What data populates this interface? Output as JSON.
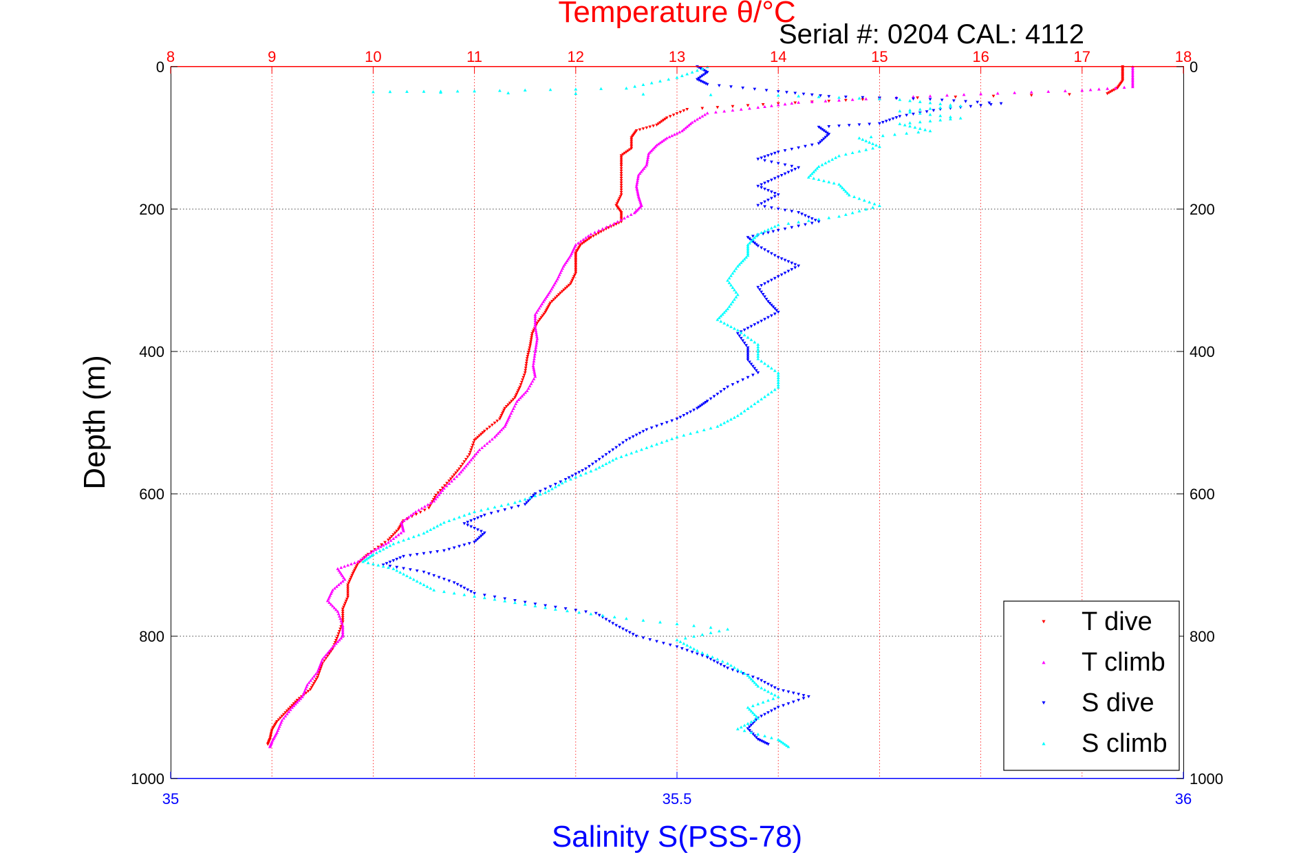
{
  "chart_data": {
    "type": "scatter",
    "title": "Temperature θ/°C",
    "subtitle": "Serial #: 0204  CAL: 4112",
    "ylabel": "Depth (m)",
    "xlabel": "Salinity S(PSS-78)",
    "top_axis": {
      "label": "Temperature θ/°C",
      "range": [
        8,
        18
      ],
      "ticks": [
        8,
        9,
        10,
        11,
        12,
        13,
        14,
        15,
        16,
        17,
        18
      ],
      "tick_labels": [
        "8",
        "9",
        "10",
        "11",
        "12",
        "13",
        "14",
        "15",
        "16",
        "17",
        "18"
      ],
      "color": "#ff0000"
    },
    "bottom_axis": {
      "label": "Salinity S(PSS-78)",
      "range": [
        35,
        36
      ],
      "ticks": [
        35,
        35.5,
        36
      ],
      "tick_labels": [
        "35",
        "35.5",
        "36"
      ],
      "color": "#0000ff"
    },
    "y_axis": {
      "label": "Depth (m)",
      "range": [
        0,
        1000
      ],
      "reversed": true,
      "ticks": [
        0,
        200,
        400,
        600,
        800,
        1000
      ],
      "tick_labels": [
        "0",
        "200",
        "400",
        "600",
        "800",
        "1000"
      ]
    },
    "grid": true,
    "legend_position": "bottom-right",
    "series": [
      {
        "name": "T dive",
        "axis": "temperature",
        "color": "#ff0000",
        "marker": "triangle-down",
        "points": [
          [
            17.4,
            0
          ],
          [
            17.4,
            10
          ],
          [
            17.4,
            20
          ],
          [
            17.35,
            30
          ],
          [
            17.25,
            38
          ],
          [
            15.0,
            45
          ],
          [
            14.0,
            52
          ],
          [
            13.1,
            60
          ],
          [
            12.9,
            72
          ],
          [
            12.8,
            82
          ],
          [
            12.6,
            90
          ],
          [
            12.55,
            100
          ],
          [
            12.55,
            115
          ],
          [
            12.45,
            125
          ],
          [
            12.45,
            140
          ],
          [
            12.45,
            160
          ],
          [
            12.45,
            180
          ],
          [
            12.4,
            195
          ],
          [
            12.45,
            205
          ],
          [
            12.45,
            218
          ],
          [
            12.3,
            228
          ],
          [
            12.15,
            240
          ],
          [
            12.05,
            250
          ],
          [
            12.0,
            262
          ],
          [
            12.0,
            275
          ],
          [
            12.0,
            290
          ],
          [
            11.95,
            305
          ],
          [
            11.85,
            318
          ],
          [
            11.75,
            332
          ],
          [
            11.7,
            345
          ],
          [
            11.62,
            360
          ],
          [
            11.57,
            375
          ],
          [
            11.55,
            392
          ],
          [
            11.52,
            410
          ],
          [
            11.5,
            430
          ],
          [
            11.45,
            450
          ],
          [
            11.4,
            465
          ],
          [
            11.3,
            480
          ],
          [
            11.25,
            495
          ],
          [
            11.1,
            512
          ],
          [
            11.0,
            525
          ],
          [
            10.95,
            545
          ],
          [
            10.85,
            565
          ],
          [
            10.75,
            582
          ],
          [
            10.62,
            602
          ],
          [
            10.55,
            620
          ],
          [
            10.3,
            638
          ],
          [
            10.25,
            650
          ],
          [
            10.15,
            665
          ],
          [
            9.95,
            685
          ],
          [
            9.85,
            698
          ],
          [
            9.8,
            712
          ],
          [
            9.75,
            728
          ],
          [
            9.75,
            745
          ],
          [
            9.7,
            762
          ],
          [
            9.7,
            780
          ],
          [
            9.65,
            800
          ],
          [
            9.6,
            818
          ],
          [
            9.5,
            838
          ],
          [
            9.45,
            858
          ],
          [
            9.38,
            875
          ],
          [
            9.25,
            890
          ],
          [
            9.15,
            905
          ],
          [
            9.05,
            920
          ],
          [
            9.0,
            932
          ],
          [
            8.98,
            945
          ],
          [
            8.96,
            952
          ]
        ]
      },
      {
        "name": "T climb",
        "axis": "temperature",
        "color": "#ff00ff",
        "marker": "triangle-up",
        "points": [
          [
            17.5,
            0
          ],
          [
            17.5,
            15
          ],
          [
            17.5,
            28
          ],
          [
            17.0,
            33
          ],
          [
            16.0,
            38
          ],
          [
            15.0,
            44
          ],
          [
            14.2,
            50
          ],
          [
            13.8,
            57
          ],
          [
            13.3,
            65
          ],
          [
            13.15,
            78
          ],
          [
            13.05,
            90
          ],
          [
            12.9,
            100
          ],
          [
            12.8,
            110
          ],
          [
            12.72,
            122
          ],
          [
            12.7,
            138
          ],
          [
            12.62,
            152
          ],
          [
            12.6,
            168
          ],
          [
            12.62,
            182
          ],
          [
            12.65,
            195
          ],
          [
            12.58,
            205
          ],
          [
            12.38,
            220
          ],
          [
            12.15,
            235
          ],
          [
            12.0,
            250
          ],
          [
            11.95,
            265
          ],
          [
            11.88,
            280
          ],
          [
            11.82,
            298
          ],
          [
            11.75,
            315
          ],
          [
            11.68,
            330
          ],
          [
            11.6,
            348
          ],
          [
            11.6,
            365
          ],
          [
            11.62,
            382
          ],
          [
            11.6,
            400
          ],
          [
            11.58,
            420
          ],
          [
            11.6,
            435
          ],
          [
            11.52,
            455
          ],
          [
            11.42,
            470
          ],
          [
            11.35,
            490
          ],
          [
            11.3,
            505
          ],
          [
            11.2,
            520
          ],
          [
            11.05,
            538
          ],
          [
            10.95,
            555
          ],
          [
            10.85,
            572
          ],
          [
            10.7,
            592
          ],
          [
            10.6,
            610
          ],
          [
            10.42,
            625
          ],
          [
            10.28,
            640
          ],
          [
            10.3,
            652
          ],
          [
            10.15,
            668
          ],
          [
            10.0,
            680
          ],
          [
            9.85,
            695
          ],
          [
            9.65,
            705
          ],
          [
            9.72,
            720
          ],
          [
            9.6,
            735
          ],
          [
            9.55,
            750
          ],
          [
            9.65,
            765
          ],
          [
            9.7,
            785
          ],
          [
            9.7,
            800
          ],
          [
            9.6,
            815
          ],
          [
            9.5,
            832
          ],
          [
            9.45,
            850
          ],
          [
            9.35,
            868
          ],
          [
            9.3,
            885
          ],
          [
            9.2,
            900
          ],
          [
            9.1,
            918
          ],
          [
            9.05,
            935
          ],
          [
            9.0,
            948
          ],
          [
            8.98,
            955
          ]
        ]
      },
      {
        "name": "S dive",
        "axis": "salinity",
        "color": "#0000ff",
        "marker": "triangle-down",
        "points": [
          [
            35.52,
            0
          ],
          [
            35.53,
            8
          ],
          [
            35.52,
            18
          ],
          [
            35.53,
            25
          ],
          [
            35.6,
            35
          ],
          [
            35.65,
            42
          ],
          [
            35.75,
            46
          ],
          [
            35.82,
            52
          ],
          [
            35.76,
            60
          ],
          [
            35.72,
            70
          ],
          [
            35.7,
            80
          ],
          [
            35.64,
            85
          ],
          [
            35.65,
            95
          ],
          [
            35.64,
            108
          ],
          [
            35.6,
            120
          ],
          [
            35.58,
            130
          ],
          [
            35.62,
            142
          ],
          [
            35.6,
            155
          ],
          [
            35.58,
            168
          ],
          [
            35.6,
            180
          ],
          [
            35.58,
            195
          ],
          [
            35.62,
            205
          ],
          [
            35.64,
            218
          ],
          [
            35.6,
            230
          ],
          [
            35.57,
            240
          ],
          [
            35.58,
            252
          ],
          [
            35.6,
            268
          ],
          [
            35.62,
            280
          ],
          [
            35.6,
            295
          ],
          [
            35.58,
            310
          ],
          [
            35.59,
            330
          ],
          [
            35.6,
            345
          ],
          [
            35.58,
            360
          ],
          [
            35.56,
            375
          ],
          [
            35.57,
            395
          ],
          [
            35.57,
            412
          ],
          [
            35.58,
            430
          ],
          [
            35.55,
            450
          ],
          [
            35.53,
            470
          ],
          [
            35.52,
            480
          ],
          [
            35.5,
            495
          ],
          [
            35.47,
            510
          ],
          [
            35.45,
            525
          ],
          [
            35.43,
            545
          ],
          [
            35.41,
            565
          ],
          [
            35.39,
            580
          ],
          [
            35.36,
            600
          ],
          [
            35.35,
            615
          ],
          [
            35.31,
            630
          ],
          [
            35.29,
            642
          ],
          [
            35.31,
            655
          ],
          [
            35.3,
            668
          ],
          [
            35.27,
            680
          ],
          [
            35.23,
            688
          ],
          [
            35.21,
            700
          ],
          [
            35.25,
            710
          ],
          [
            35.28,
            725
          ],
          [
            35.3,
            740
          ],
          [
            35.36,
            755
          ],
          [
            35.42,
            768
          ],
          [
            35.44,
            785
          ],
          [
            35.46,
            800
          ],
          [
            35.5,
            815
          ],
          [
            35.53,
            830
          ],
          [
            35.55,
            845
          ],
          [
            35.58,
            860
          ],
          [
            35.6,
            875
          ],
          [
            35.63,
            885
          ],
          [
            35.6,
            900
          ],
          [
            35.58,
            915
          ],
          [
            35.57,
            930
          ],
          [
            35.58,
            945
          ],
          [
            35.59,
            952
          ]
        ]
      },
      {
        "name": "S climb",
        "axis": "salinity",
        "color": "#00ffff",
        "marker": "triangle-up",
        "points": [
          [
            35.53,
            0
          ],
          [
            35.5,
            15
          ],
          [
            35.45,
            30
          ],
          [
            35.3,
            34
          ],
          [
            35.2,
            35
          ],
          [
            35.6,
            40
          ],
          [
            35.72,
            46
          ],
          [
            35.78,
            55
          ],
          [
            35.72,
            62
          ],
          [
            35.78,
            72
          ],
          [
            35.72,
            80
          ],
          [
            35.75,
            90
          ],
          [
            35.68,
            100
          ],
          [
            35.7,
            112
          ],
          [
            35.66,
            125
          ],
          [
            35.64,
            140
          ],
          [
            35.63,
            155
          ],
          [
            35.66,
            165
          ],
          [
            35.67,
            180
          ],
          [
            35.7,
            195
          ],
          [
            35.66,
            210
          ],
          [
            35.6,
            222
          ],
          [
            35.58,
            235
          ],
          [
            35.57,
            250
          ],
          [
            35.57,
            265
          ],
          [
            35.56,
            280
          ],
          [
            35.55,
            300
          ],
          [
            35.56,
            320
          ],
          [
            35.55,
            340
          ],
          [
            35.54,
            355
          ],
          [
            35.56,
            370
          ],
          [
            35.58,
            390
          ],
          [
            35.58,
            410
          ],
          [
            35.6,
            430
          ],
          [
            35.6,
            450
          ],
          [
            35.58,
            470
          ],
          [
            35.56,
            490
          ],
          [
            35.54,
            505
          ],
          [
            35.5,
            520
          ],
          [
            35.47,
            535
          ],
          [
            35.44,
            550
          ],
          [
            35.42,
            565
          ],
          [
            35.39,
            582
          ],
          [
            35.37,
            598
          ],
          [
            35.34,
            612
          ],
          [
            35.3,
            625
          ],
          [
            35.27,
            640
          ],
          [
            35.25,
            655
          ],
          [
            35.22,
            670
          ],
          [
            35.2,
            685
          ],
          [
            35.19,
            695
          ],
          [
            35.22,
            705
          ],
          [
            35.24,
            720
          ],
          [
            35.26,
            735
          ],
          [
            35.32,
            748
          ],
          [
            35.38,
            762
          ],
          [
            35.45,
            775
          ],
          [
            35.55,
            790
          ],
          [
            35.5,
            805
          ],
          [
            35.52,
            820
          ],
          [
            35.55,
            838
          ],
          [
            35.57,
            855
          ],
          [
            35.58,
            870
          ],
          [
            35.6,
            885
          ],
          [
            35.57,
            900
          ],
          [
            35.58,
            915
          ],
          [
            35.56,
            930
          ],
          [
            35.6,
            945
          ],
          [
            35.61,
            955
          ]
        ]
      }
    ]
  }
}
